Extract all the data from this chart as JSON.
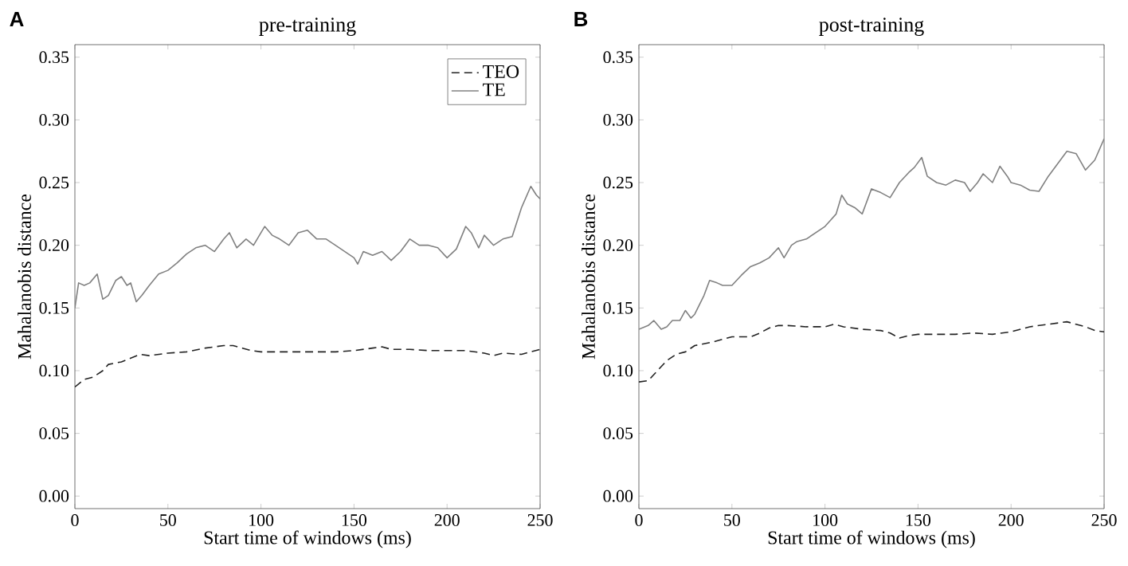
{
  "chart_data": [
    {
      "type": "line",
      "title": "pre-training",
      "xlabel": "Start time of windows (ms)",
      "ylabel": "Mahalanobis distance",
      "annotations": [
        "A"
      ],
      "xlim": [
        0,
        250
      ],
      "ylim": [
        -0.01,
        0.36
      ],
      "xticks": [
        0,
        50,
        100,
        150,
        200,
        250
      ],
      "yticks": [
        {
          "value": 0,
          "label": "0.00"
        },
        {
          "value": 0.05,
          "label": "0.05"
        },
        {
          "value": 0.1,
          "label": "0.10"
        },
        {
          "value": 0.15,
          "label": "0.15"
        },
        {
          "value": 0.2,
          "label": "0.20"
        },
        {
          "value": 0.25,
          "label": "0.25"
        },
        {
          "value": 0.3,
          "label": "0.30"
        },
        {
          "value": 0.35,
          "label": "0.35"
        }
      ],
      "legend": "top right",
      "series": [
        {
          "name": "TEO",
          "color": "#222222",
          "line_style": "dashed",
          "x": [
            0,
            5,
            10,
            15,
            18,
            25,
            30,
            35,
            40,
            50,
            60,
            70,
            80,
            85,
            90,
            95,
            100,
            110,
            120,
            130,
            140,
            150,
            160,
            165,
            170,
            180,
            190,
            200,
            210,
            220,
            225,
            230,
            240,
            245,
            250
          ],
          "values": [
            0.087,
            0.093,
            0.095,
            0.1,
            0.105,
            0.107,
            0.11,
            0.113,
            0.112,
            0.114,
            0.115,
            0.118,
            0.12,
            0.12,
            0.118,
            0.116,
            0.115,
            0.115,
            0.115,
            0.115,
            0.115,
            0.116,
            0.118,
            0.119,
            0.117,
            0.117,
            0.116,
            0.116,
            0.116,
            0.114,
            0.112,
            0.114,
            0.113,
            0.115,
            0.117
          ]
        },
        {
          "name": "TE",
          "color": "#808080",
          "line_style": "solid",
          "x": [
            0,
            2,
            5,
            8,
            12,
            15,
            18,
            22,
            25,
            28,
            30,
            33,
            36,
            40,
            45,
            50,
            55,
            60,
            65,
            70,
            75,
            80,
            83,
            87,
            92,
            96,
            100,
            102,
            106,
            110,
            115,
            120,
            125,
            130,
            135,
            140,
            145,
            150,
            152,
            155,
            160,
            165,
            170,
            175,
            180,
            185,
            190,
            195,
            200,
            205,
            210,
            213,
            217,
            220,
            225,
            230,
            235,
            240,
            245,
            248,
            250
          ],
          "values": [
            0.15,
            0.17,
            0.168,
            0.17,
            0.177,
            0.157,
            0.16,
            0.172,
            0.175,
            0.168,
            0.17,
            0.155,
            0.16,
            0.168,
            0.177,
            0.18,
            0.186,
            0.193,
            0.198,
            0.2,
            0.195,
            0.205,
            0.21,
            0.198,
            0.205,
            0.2,
            0.21,
            0.215,
            0.208,
            0.205,
            0.2,
            0.21,
            0.212,
            0.205,
            0.205,
            0.2,
            0.195,
            0.19,
            0.185,
            0.195,
            0.192,
            0.195,
            0.188,
            0.195,
            0.205,
            0.2,
            0.2,
            0.198,
            0.19,
            0.197,
            0.215,
            0.21,
            0.198,
            0.208,
            0.2,
            0.205,
            0.207,
            0.23,
            0.247,
            0.24,
            0.237
          ]
        }
      ]
    },
    {
      "type": "line",
      "title": "post-training",
      "xlabel": "Start time of windows (ms)",
      "ylabel": "Mahalanobis distance",
      "annotations": [
        "B"
      ],
      "xlim": [
        0,
        250
      ],
      "ylim": [
        -0.01,
        0.36
      ],
      "xticks": [
        0,
        50,
        100,
        150,
        200,
        250
      ],
      "yticks": [
        {
          "value": 0,
          "label": "0.00"
        },
        {
          "value": 0.05,
          "label": "0.05"
        },
        {
          "value": 0.1,
          "label": "0.10"
        },
        {
          "value": 0.15,
          "label": "0.15"
        },
        {
          "value": 0.2,
          "label": "0.20"
        },
        {
          "value": 0.25,
          "label": "0.25"
        },
        {
          "value": 0.3,
          "label": "0.30"
        },
        {
          "value": 0.35,
          "label": "0.35"
        }
      ],
      "series": [
        {
          "color": "#222222",
          "line_style": "dashed",
          "x": [
            0,
            5,
            10,
            15,
            20,
            25,
            30,
            40,
            50,
            60,
            65,
            70,
            75,
            80,
            90,
            100,
            105,
            110,
            120,
            130,
            135,
            140,
            145,
            150,
            160,
            170,
            180,
            190,
            200,
            210,
            220,
            230,
            240,
            245,
            250
          ],
          "values": [
            0.091,
            0.092,
            0.1,
            0.108,
            0.113,
            0.115,
            0.12,
            0.123,
            0.127,
            0.127,
            0.13,
            0.134,
            0.136,
            0.136,
            0.135,
            0.135,
            0.137,
            0.135,
            0.133,
            0.132,
            0.13,
            0.126,
            0.128,
            0.129,
            0.129,
            0.129,
            0.13,
            0.129,
            0.131,
            0.135,
            0.137,
            0.139,
            0.135,
            0.132,
            0.131
          ]
        },
        {
          "color": "#808080",
          "line_style": "solid",
          "x": [
            0,
            5,
            8,
            12,
            15,
            18,
            22,
            25,
            28,
            30,
            35,
            38,
            42,
            45,
            50,
            55,
            60,
            65,
            70,
            75,
            78,
            82,
            85,
            90,
            95,
            100,
            103,
            106,
            109,
            112,
            116,
            120,
            125,
            130,
            135,
            140,
            145,
            148,
            152,
            155,
            160,
            165,
            170,
            175,
            178,
            182,
            185,
            190,
            194,
            198,
            200,
            205,
            210,
            215,
            220,
            225,
            230,
            235,
            240,
            245,
            250
          ],
          "values": [
            0.133,
            0.136,
            0.14,
            0.133,
            0.135,
            0.14,
            0.14,
            0.148,
            0.142,
            0.145,
            0.16,
            0.172,
            0.17,
            0.168,
            0.168,
            0.176,
            0.183,
            0.186,
            0.19,
            0.198,
            0.19,
            0.2,
            0.203,
            0.205,
            0.21,
            0.215,
            0.22,
            0.225,
            0.24,
            0.233,
            0.23,
            0.225,
            0.245,
            0.242,
            0.238,
            0.25,
            0.258,
            0.262,
            0.27,
            0.255,
            0.25,
            0.248,
            0.252,
            0.25,
            0.243,
            0.25,
            0.257,
            0.25,
            0.263,
            0.255,
            0.25,
            0.248,
            0.244,
            0.243,
            0.255,
            0.265,
            0.275,
            0.273,
            0.26,
            0.268,
            0.285
          ]
        }
      ]
    }
  ]
}
